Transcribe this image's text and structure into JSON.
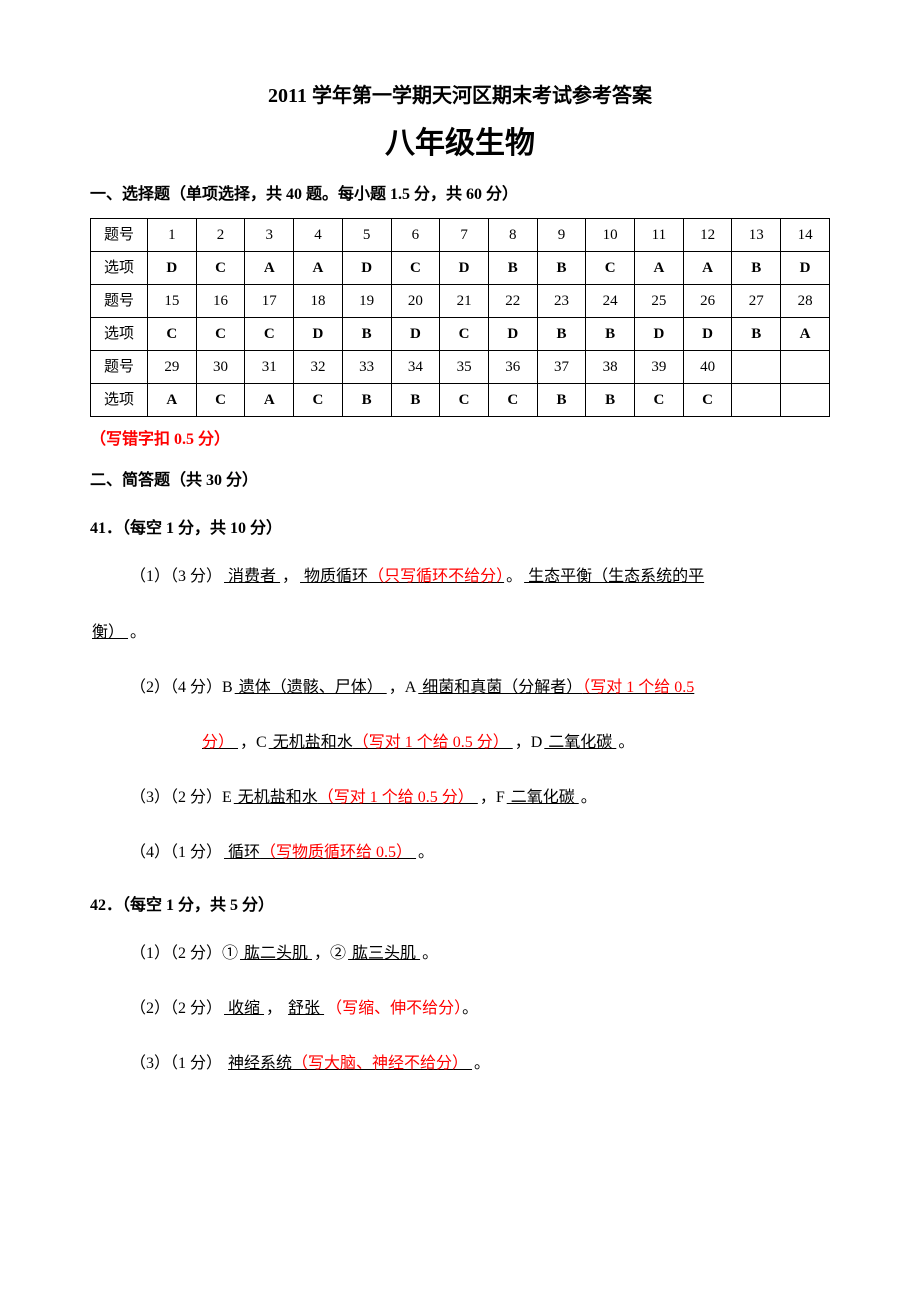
{
  "titles": {
    "main": "2011 学年第一学期天河区期末考试参考答案",
    "sub": "八年级生物"
  },
  "section1": {
    "heading": "一、选择题（单项选择，共 40 题。每小题 1.5 分，共 60 分）",
    "rowlabel_q": "题号",
    "rowlabel_a": "选项",
    "rows": [
      {
        "nums": [
          "1",
          "2",
          "3",
          "4",
          "5",
          "6",
          "7",
          "8",
          "9",
          "10",
          "11",
          "12",
          "13",
          "14"
        ],
        "ans": [
          "D",
          "C",
          "A",
          "A",
          "D",
          "C",
          "D",
          "B",
          "B",
          "C",
          "A",
          "A",
          "B",
          "D"
        ]
      },
      {
        "nums": [
          "15",
          "16",
          "17",
          "18",
          "19",
          "20",
          "21",
          "22",
          "23",
          "24",
          "25",
          "26",
          "27",
          "28"
        ],
        "ans": [
          "C",
          "C",
          "C",
          "D",
          "B",
          "D",
          "C",
          "D",
          "B",
          "B",
          "D",
          "D",
          "B",
          "A"
        ]
      },
      {
        "nums": [
          "29",
          "30",
          "31",
          "32",
          "33",
          "34",
          "35",
          "36",
          "37",
          "38",
          "39",
          "40",
          "",
          ""
        ],
        "ans": [
          "A",
          "C",
          "A",
          "C",
          "B",
          "B",
          "C",
          "C",
          "B",
          "B",
          "C",
          "C",
          "",
          ""
        ]
      }
    ],
    "note": "（写错字扣 0.5 分）"
  },
  "section2_heading": "二、简答题（共 30 分）",
  "q41": {
    "heading": "41．（每空 1 分，共 10 分）",
    "p1_prefix": "（1）（3 分）",
    "p1_a1": "  消费者   ",
    "p1_sep1": "，",
    "p1_a2_text": "  物质循环",
    "p1_a2_red": "（只写循环不给分）",
    "p1_sep2": "。",
    "p1_a3": "  生态平衡（生态系统的平",
    "p1_a3_cont": "衡）    ",
    "p1_end": "。",
    "p2_prefix": "（2）（4 分）B",
    "p2_b": "  遗体（遗骸、尸体）     ",
    "p2_sep1": "，A",
    "p2_a_text": "  细菌和真菌（分解者）",
    "p2_a_red": "（写对 1 个给 0.5",
    "p2_a_red2": "分）   ",
    "p2_sep2": "，C",
    "p2_c_text": "   无机盐和水",
    "p2_c_red": "（写对 1 个给 0.5 分）   ",
    "p2_sep3": "，D",
    "p2_d": "  二氧化碳     ",
    "p2_end": "。",
    "p3_prefix": "（3）（2 分）E",
    "p3_e_text": "  无机盐和水",
    "p3_e_red": "（写对 1 个给 0.5 分）   ",
    "p3_sep": "，F",
    "p3_f": "   二氧化碳          ",
    "p3_end": "。",
    "p4_prefix": "（4）（1 分）",
    "p4_text": "    循环",
    "p4_red": "（写物质循环给 0.5）    ",
    "p4_end": "。"
  },
  "q42": {
    "heading": "42．（每空 1 分，共 5 分）",
    "p1_prefix": "（1）（2 分）①",
    "p1_a1": "   肱二头肌           ",
    "p1_sep": "，②",
    "p1_a2": "  肱三头肌          ",
    "p1_end": "。",
    "p2_prefix": "（2）（2 分）",
    "p2_a1": "   收缩        ",
    "p2_sep1": "，",
    "p2_a2": "   舒张   ",
    "p2_red": "（写缩、伸不给分）",
    "p2_end": "。",
    "p3_prefix": "（3）（1 分）",
    "p3_text": "  神经系统",
    "p3_red": "（写大脑、神经不给分）    ",
    "p3_end": "。"
  }
}
